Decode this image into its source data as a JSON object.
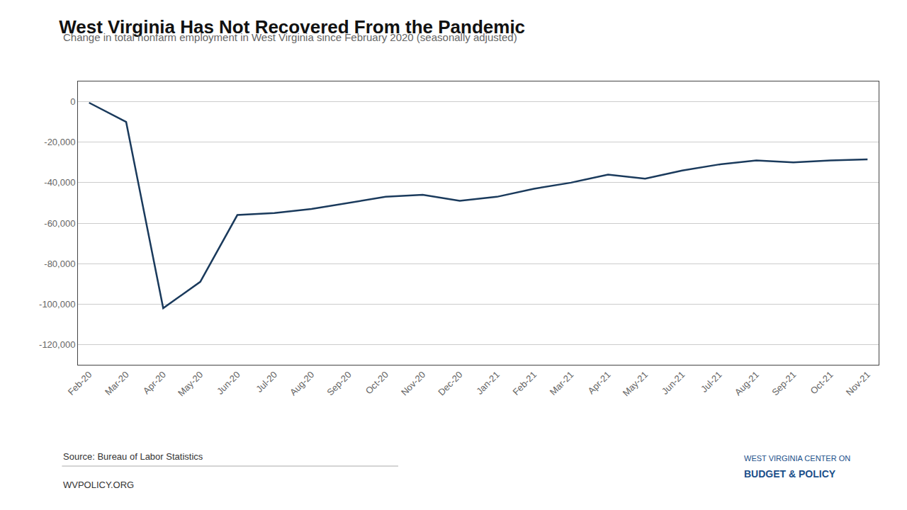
{
  "chart_data": {
    "type": "line",
    "title": "West Virginia Has Not Recovered From the Pandemic",
    "subtitle": "Change in total nonfarm employment in West Virginia since February 2020 (seasonally adjusted)",
    "annotations": [
      "Source: Bureau of Labor Statistics",
      "WVPOLICY.ORG",
      "WEST VIRGINIA CENTER ON",
      "BUDGET & POLICY"
    ],
    "categories": [
      "Feb-20",
      "Mar-20",
      "Apr-20",
      "May-20",
      "Jun-20",
      "Jul-20",
      "Aug-20",
      "Sep-20",
      "Oct-20",
      "Nov-20",
      "Dec-20",
      "Jan-21",
      "Feb-21",
      "Mar-21",
      "Apr-21",
      "May-21",
      "Jun-21",
      "Jul-21",
      "Aug-21",
      "Sep-21",
      "Oct-21",
      "Nov-21"
    ],
    "values": [
      -500,
      -10000,
      -102000,
      -89000,
      -56000,
      -55000,
      -53000,
      -50000,
      -47000,
      -46000,
      -49000,
      -47000,
      -43000,
      -40000,
      -36000,
      -38000,
      -34000,
      -31000,
      -29000,
      -30000,
      -29000,
      -28500
    ],
    "color": "#1a3a5c",
    "ylim": [
      -130000,
      10000
    ],
    "yticks": [
      0,
      {
        "value": -20000,
        "label": "-20,000"
      },
      {
        "value": -40000,
        "label": "-40,000"
      },
      {
        "value": -60000,
        "label": "-60,000"
      },
      {
        "value": -80000,
        "label": "-80,000"
      },
      {
        "value": -100000,
        "label": "-100,000"
      },
      {
        "value": -120000,
        "label": "-120,000"
      }
    ],
    "grid": true
  }
}
